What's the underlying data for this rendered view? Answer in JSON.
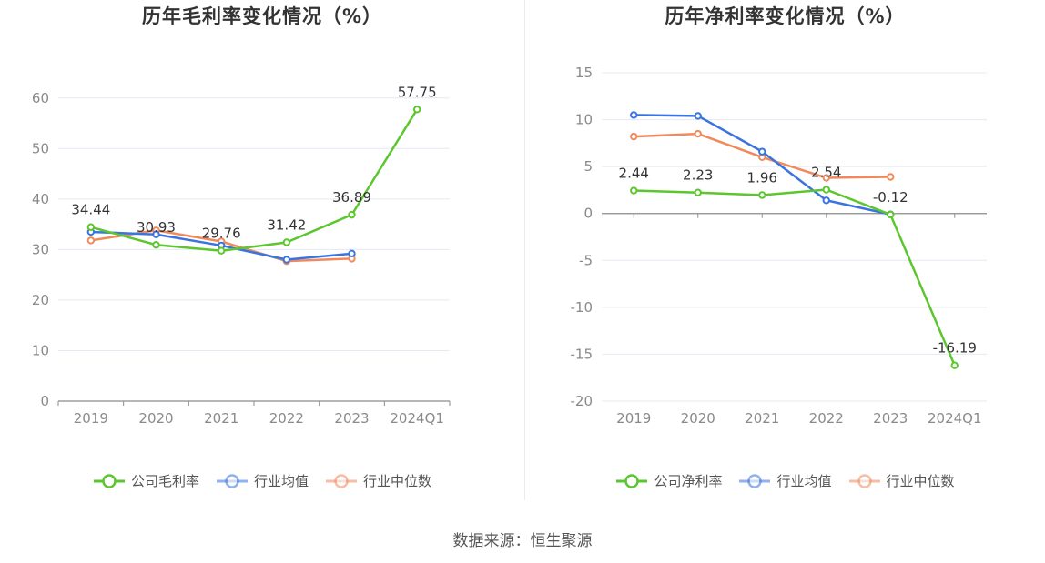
{
  "chart_data": [
    {
      "type": "line",
      "title": "历年毛利率变化情况（%）",
      "categories": [
        "2019",
        "2020",
        "2021",
        "2022",
        "2023",
        "2024Q1"
      ],
      "yticks": [
        "0",
        "10",
        "20",
        "30",
        "40",
        "50",
        "60"
      ],
      "ylim": [
        0,
        65
      ],
      "grid": true,
      "legend_position": "bottom",
      "series": [
        {
          "name": "公司毛利率",
          "color": "#5cc62e",
          "values": [
            34.44,
            30.93,
            29.76,
            31.42,
            36.89,
            57.75
          ],
          "labels": [
            "34.44",
            "30.93",
            "29.76",
            "31.42",
            "36.89",
            "57.75"
          ]
        },
        {
          "name": "行业均值",
          "color": "#3a74e0",
          "values": [
            33.5,
            33.0,
            30.8,
            28.0,
            29.2,
            null
          ]
        },
        {
          "name": "行业中位数",
          "color": "#f08a5d",
          "values": [
            31.8,
            33.8,
            31.6,
            27.7,
            28.2,
            null
          ]
        }
      ]
    },
    {
      "type": "line",
      "title": "历年净利率变化情况（%）",
      "categories": [
        "2019",
        "2020",
        "2021",
        "2022",
        "2023",
        "2024Q1"
      ],
      "yticks": [
        "-20",
        "-15",
        "-10",
        "-5",
        "0",
        "5",
        "10",
        "15"
      ],
      "ylim": [
        -20,
        15
      ],
      "grid": true,
      "legend_position": "bottom",
      "series": [
        {
          "name": "公司净利率",
          "color": "#5cc62e",
          "values": [
            2.44,
            2.23,
            1.96,
            2.54,
            -0.12,
            -16.19
          ],
          "labels": [
            "2.44",
            "2.23",
            "1.96",
            "2.54",
            "-0.12",
            "-16.19"
          ]
        },
        {
          "name": "行业均值",
          "color": "#3a74e0",
          "values": [
            10.5,
            10.4,
            6.6,
            1.4,
            -0.1,
            null
          ]
        },
        {
          "name": "行业中位数",
          "color": "#f08a5d",
          "values": [
            8.2,
            8.5,
            6.0,
            3.8,
            3.9,
            null
          ]
        }
      ]
    }
  ],
  "source_text": "数据来源：恒生聚源"
}
